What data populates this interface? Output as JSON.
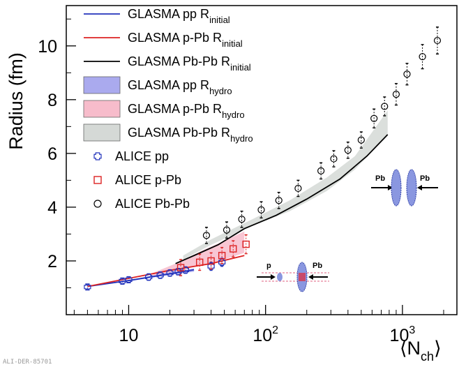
{
  "chart_data": {
    "type": "scatter",
    "xlabel_parts": [
      "⟨N",
      "ch",
      "⟩"
    ],
    "ylabel": "Radius (fm)",
    "x_scale": "log",
    "xlim": [
      3.5,
      2500
    ],
    "ylim": [
      0,
      11.5
    ],
    "x_ticks": [
      {
        "value": 10,
        "label": "10"
      },
      {
        "value": 100,
        "label": "10",
        "sup": "2"
      },
      {
        "value": 1000,
        "label": "10",
        "sup": "3"
      }
    ],
    "y_ticks": [
      2,
      4,
      6,
      8,
      10
    ],
    "grid": false,
    "legend_position": "top-left",
    "series": [
      {
        "name_main": "GLASMA pp R",
        "name_sub": "initial",
        "kind": "line",
        "color": "#2233bb",
        "points": [
          [
            5,
            1.05
          ],
          [
            10,
            1.27
          ],
          [
            20,
            1.52
          ],
          [
            30,
            1.67
          ]
        ]
      },
      {
        "name_main": "GLASMA p-Pb R",
        "name_sub": "initial",
        "kind": "line",
        "color": "#dd2222",
        "points": [
          [
            5,
            1.05
          ],
          [
            10,
            1.35
          ],
          [
            20,
            1.65
          ],
          [
            40,
            1.9
          ],
          [
            70,
            2.2
          ]
        ]
      },
      {
        "name_main": "GLASMA Pb-Pb R",
        "name_sub": "initial",
        "kind": "line",
        "color": "#000000",
        "points": [
          [
            22,
            1.9
          ],
          [
            30,
            2.2
          ],
          [
            45,
            2.6
          ],
          [
            70,
            3.2
          ],
          [
            120,
            3.7
          ],
          [
            200,
            4.3
          ],
          [
            350,
            5.05
          ],
          [
            550,
            5.9
          ],
          [
            780,
            6.7
          ]
        ]
      },
      {
        "name_main": "GLASMA pp R",
        "name_sub": "hydro",
        "kind": "band",
        "color": "#aaaaee",
        "upper": [
          [
            10,
            1.28
          ],
          [
            20,
            1.58
          ],
          [
            30,
            1.72
          ]
        ],
        "lower": [
          [
            10,
            1.24
          ],
          [
            20,
            1.48
          ],
          [
            30,
            1.6
          ]
        ]
      },
      {
        "name_main": "GLASMA p-Pb R",
        "name_sub": "hydro",
        "kind": "band",
        "color": "#f7bccb",
        "upper": [
          [
            15,
            1.55
          ],
          [
            22,
            1.9
          ],
          [
            35,
            2.4
          ],
          [
            50,
            2.75
          ],
          [
            70,
            3.1
          ]
        ],
        "lower": [
          [
            15,
            1.45
          ],
          [
            22,
            1.62
          ],
          [
            35,
            1.85
          ],
          [
            50,
            2.05
          ],
          [
            70,
            2.3
          ]
        ]
      },
      {
        "name_main": "GLASMA Pb-Pb R",
        "name_sub": "hydro",
        "kind": "band",
        "color": "#d5d9d6",
        "upper": [
          [
            25,
            2.2
          ],
          [
            40,
            2.8
          ],
          [
            80,
            3.55
          ],
          [
            150,
            4.25
          ],
          [
            280,
            5.1
          ],
          [
            450,
            5.9
          ],
          [
            780,
            7.6
          ]
        ],
        "lower": [
          [
            25,
            2.05
          ],
          [
            40,
            2.6
          ],
          [
            80,
            3.3
          ],
          [
            150,
            3.85
          ],
          [
            280,
            4.6
          ],
          [
            450,
            5.4
          ],
          [
            780,
            6.7
          ]
        ]
      },
      {
        "name": "ALICE pp",
        "kind": "marker",
        "marker": "cross",
        "color": "#2233bb",
        "points": [
          [
            5,
            1.03
          ],
          [
            9,
            1.25
          ],
          [
            10,
            1.3
          ],
          [
            14,
            1.4
          ],
          [
            17,
            1.47
          ],
          [
            20,
            1.55
          ],
          [
            23,
            1.6
          ],
          [
            26,
            1.66
          ],
          [
            40,
            1.8
          ],
          [
            48,
            1.95
          ]
        ],
        "errors": [
          0.08,
          0.1,
          0.1,
          0.12,
          0.12,
          0.12,
          0.12,
          0.12,
          0.15,
          0.15
        ]
      },
      {
        "name": "ALICE p-Pb",
        "kind": "marker",
        "marker": "square",
        "color": "#dd2222",
        "points": [
          [
            24,
            1.75
          ],
          [
            33,
            1.95
          ],
          [
            40,
            2.0
          ],
          [
            48,
            2.2
          ],
          [
            58,
            2.45
          ],
          [
            72,
            2.62
          ]
        ],
        "errors": [
          0.3,
          0.3,
          0.3,
          0.3,
          0.3,
          0.35
        ]
      },
      {
        "name": "ALICE Pb-Pb",
        "kind": "marker",
        "marker": "circle",
        "color": "#000000",
        "points": [
          [
            37,
            2.95
          ],
          [
            52,
            3.15
          ],
          [
            67,
            3.55
          ],
          [
            93,
            3.9
          ],
          [
            125,
            4.25
          ],
          [
            173,
            4.7
          ],
          [
            254,
            5.35
          ],
          [
            315,
            5.8
          ],
          [
            400,
            6.12
          ],
          [
            500,
            6.5
          ],
          [
            620,
            7.3
          ],
          [
            740,
            7.75
          ],
          [
            900,
            8.2
          ],
          [
            1080,
            8.95
          ],
          [
            1400,
            9.6
          ],
          [
            1800,
            10.2
          ]
        ],
        "errors": [
          0.3,
          0.3,
          0.3,
          0.3,
          0.3,
          0.3,
          0.3,
          0.3,
          0.3,
          0.3,
          0.35,
          0.35,
          0.4,
          0.4,
          0.45,
          0.5
        ]
      }
    ],
    "insets": {
      "pb_pb": {
        "left_label": "Pb",
        "right_label": "Pb"
      },
      "p_pb": {
        "left_label": "p",
        "right_label": "Pb"
      }
    }
  },
  "footer_id": "ALI-DER-85701"
}
